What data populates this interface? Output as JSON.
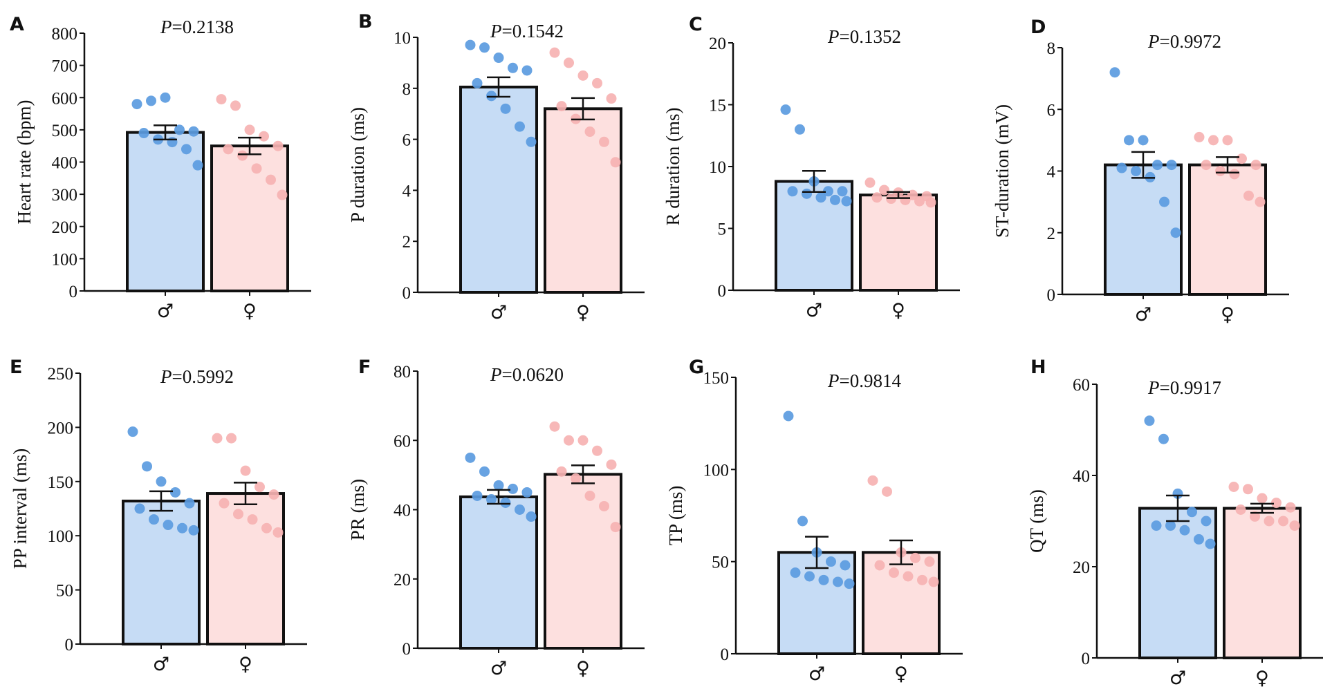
{
  "colors": {
    "male_bar": "#c6dcf5",
    "female_bar": "#fde0df",
    "male_dot": "#5b9be0",
    "female_dot": "#f6b2b2",
    "axis": "#111111"
  },
  "chart_data": [
    {
      "type": "bar",
      "panel": "A",
      "p_prefix": "P",
      "p_value": "=0.2138",
      "ylabel": "Heart rate (bpm)",
      "categories": [
        "♂",
        "♀"
      ],
      "ylim": [
        0,
        800
      ],
      "yticks": [
        0,
        100,
        200,
        300,
        400,
        500,
        600,
        700,
        800
      ],
      "tick_labels": [
        "0",
        "100",
        "200",
        "300",
        "400",
        "500",
        "600",
        "700",
        "800"
      ],
      "means": [
        492,
        450
      ],
      "sem": [
        22,
        26
      ],
      "points": [
        [
          580,
          590,
          600,
          500,
          495,
          490,
          470,
          462,
          440,
          390
        ],
        [
          595,
          575,
          500,
          480,
          450,
          440,
          420,
          380,
          345,
          298
        ]
      ]
    },
    {
      "type": "bar",
      "panel": "B",
      "p_prefix": "P",
      "p_value": "=0.1542",
      "ylabel": "P duration (ms)",
      "categories": [
        "♂",
        "♀"
      ],
      "ylim": [
        0,
        10
      ],
      "yticks": [
        0,
        2,
        4,
        6,
        8,
        10
      ],
      "tick_labels": [
        "0",
        "2",
        "4",
        "6",
        "8",
        "10"
      ],
      "means": [
        8.05,
        7.2
      ],
      "sem": [
        0.38,
        0.42
      ],
      "points": [
        [
          9.7,
          9.6,
          9.2,
          8.8,
          8.7,
          8.2,
          7.7,
          7.2,
          6.5,
          5.9
        ],
        [
          9.4,
          9.0,
          8.5,
          8.2,
          7.6,
          7.3,
          6.8,
          6.3,
          5.9,
          5.1
        ]
      ]
    },
    {
      "type": "bar",
      "panel": "C",
      "p_prefix": "P",
      "p_value": "=0.1352",
      "ylabel": "R duration (ms)",
      "categories": [
        "♂",
        "♀"
      ],
      "ylim": [
        0,
        20
      ],
      "yticks": [
        0,
        5,
        10,
        15,
        20
      ],
      "tick_labels": [
        "0",
        "5",
        "10",
        "15",
        "20"
      ],
      "means": [
        8.8,
        7.7
      ],
      "sem": [
        0.85,
        0.25
      ],
      "points": [
        [
          14.6,
          13.0,
          8.8,
          8.0,
          8.0,
          8.0,
          7.8,
          7.5,
          7.3,
          7.2
        ],
        [
          8.7,
          8.1,
          7.9,
          7.7,
          7.6,
          7.5,
          7.4,
          7.3,
          7.2,
          7.1
        ]
      ]
    },
    {
      "type": "bar",
      "panel": "D",
      "p_prefix": "P",
      "p_value": "=0.9972",
      "ylabel": "ST-duration (mV)",
      "categories": [
        "♂",
        "♀"
      ],
      "ylim": [
        0,
        8
      ],
      "yticks": [
        0,
        2,
        4,
        6,
        8
      ],
      "tick_labels": [
        "0",
        "2",
        "4",
        "6",
        "8"
      ],
      "means": [
        4.2,
        4.2
      ],
      "sem": [
        0.42,
        0.25
      ],
      "points": [
        [
          7.2,
          5.0,
          5.0,
          4.2,
          4.2,
          4.1,
          4.0,
          3.8,
          3.0,
          2.0
        ],
        [
          5.1,
          5.0,
          5.0,
          4.4,
          4.2,
          4.2,
          4.0,
          3.9,
          3.2,
          3.0
        ]
      ]
    },
    {
      "type": "bar",
      "panel": "E",
      "p_prefix": "P",
      "p_value": "=0.5992",
      "ylabel": "PP interval (ms)",
      "categories": [
        "♂",
        "♀"
      ],
      "ylim": [
        0,
        250
      ],
      "yticks": [
        0,
        50,
        100,
        150,
        200,
        250
      ],
      "tick_labels": [
        "0",
        "50",
        "100",
        "150",
        "200",
        "250"
      ],
      "means": [
        132,
        139
      ],
      "sem": [
        9,
        10
      ],
      "points": [
        [
          196,
          164,
          150,
          140,
          130,
          125,
          115,
          110,
          107,
          105
        ],
        [
          190,
          190,
          160,
          145,
          138,
          130,
          120,
          115,
          107,
          103
        ]
      ]
    },
    {
      "type": "bar",
      "panel": "F",
      "p_prefix": "P",
      "p_value": "=0.0620",
      "ylabel": "PR (ms)",
      "categories": [
        "♂",
        "♀"
      ],
      "ylim": [
        0,
        80
      ],
      "yticks": [
        0,
        20,
        40,
        60,
        80
      ],
      "tick_labels": [
        "0",
        "20",
        "40",
        "60",
        "80"
      ],
      "means": [
        43.7,
        50.2
      ],
      "sem": [
        2.0,
        2.6
      ],
      "points": [
        [
          55,
          51,
          47,
          46,
          45,
          44,
          43,
          42,
          40,
          38
        ],
        [
          64,
          60,
          60,
          57,
          53,
          51,
          49,
          44,
          41,
          35
        ]
      ]
    },
    {
      "type": "bar",
      "panel": "G",
      "p_prefix": "P",
      "p_value": "=0.9814",
      "ylabel": "TP (ms)",
      "categories": [
        "♂",
        "♀"
      ],
      "ylim": [
        0,
        150
      ],
      "yticks": [
        0,
        50,
        100,
        150
      ],
      "tick_labels": [
        "0",
        "50",
        "100",
        "150"
      ],
      "means": [
        55,
        55
      ],
      "sem": [
        8.5,
        6.5
      ],
      "points": [
        [
          129,
          72,
          55,
          50,
          48,
          44,
          42,
          40,
          39,
          38
        ],
        [
          94,
          88,
          55,
          52,
          50,
          48,
          44,
          42,
          40,
          39
        ]
      ]
    },
    {
      "type": "bar",
      "panel": "H",
      "p_prefix": "P",
      "p_value": "=0.9917",
      "ylabel": "QT (ms)",
      "categories": [
        "♂",
        "♀"
      ],
      "ylim": [
        0,
        60
      ],
      "yticks": [
        0,
        20,
        40,
        60
      ],
      "tick_labels": [
        "0",
        "20",
        "40",
        "60"
      ],
      "means": [
        32.8,
        32.8
      ],
      "sem": [
        2.8,
        1.0
      ],
      "points": [
        [
          52,
          48,
          36,
          32,
          30,
          29,
          29,
          28,
          26,
          25
        ],
        [
          37.5,
          37,
          35,
          34,
          33,
          32.5,
          31,
          30,
          30,
          29
        ]
      ]
    }
  ]
}
